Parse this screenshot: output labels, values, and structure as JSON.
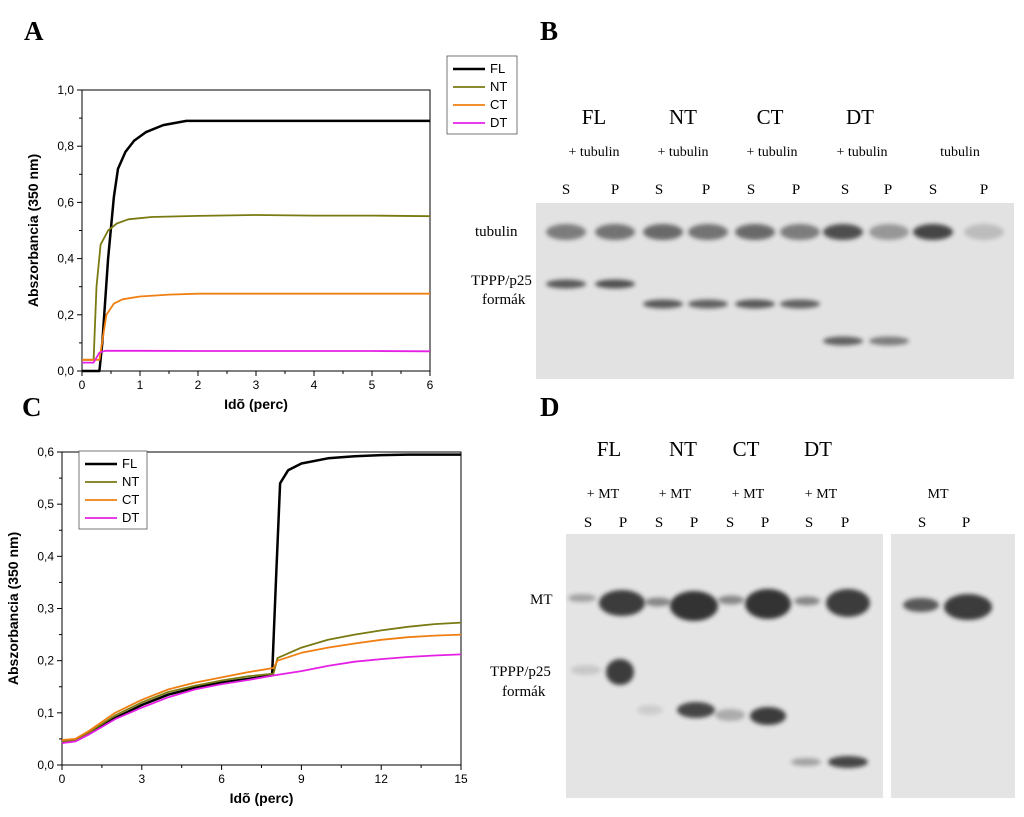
{
  "chart_data": [
    {
      "panel": "A",
      "type": "line",
      "xlabel": "Idõ (perc)",
      "ylabel": "Abszorbancia (350 nm)",
      "xlim": [
        0,
        6
      ],
      "ylim": [
        0,
        1.0
      ],
      "x_ticks": [
        "0",
        "1",
        "2",
        "3",
        "4",
        "5",
        "6"
      ],
      "y_ticks": [
        "0,0",
        "0,2",
        "0,4",
        "0,6",
        "0,8",
        "1,0"
      ],
      "legend_position": "top-right",
      "series": [
        {
          "name": "FL",
          "color": "#000000",
          "x": [
            0,
            0.3,
            0.35,
            0.45,
            0.55,
            0.62,
            0.75,
            0.9,
            1.1,
            1.4,
            1.8,
            2.5,
            3.5,
            4.5,
            6
          ],
          "y": [
            0.0,
            0.0,
            0.1,
            0.4,
            0.62,
            0.72,
            0.78,
            0.82,
            0.85,
            0.875,
            0.89,
            0.89,
            0.89,
            0.89,
            0.89
          ]
        },
        {
          "name": "NT",
          "color": "#7a7a12",
          "x": [
            0,
            0.2,
            0.25,
            0.32,
            0.45,
            0.6,
            0.8,
            1.2,
            2,
            3,
            4,
            5,
            6
          ],
          "y": [
            0.04,
            0.04,
            0.3,
            0.45,
            0.5,
            0.525,
            0.54,
            0.548,
            0.552,
            0.555,
            0.553,
            0.553,
            0.551
          ]
        },
        {
          "name": "CT",
          "color": "#f07f12",
          "x": [
            0,
            0.3,
            0.42,
            0.55,
            0.7,
            1.0,
            1.5,
            2,
            3,
            4,
            5,
            6
          ],
          "y": [
            0.04,
            0.04,
            0.2,
            0.24,
            0.255,
            0.265,
            0.272,
            0.275,
            0.275,
            0.275,
            0.275,
            0.275
          ]
        },
        {
          "name": "DT",
          "color": "#e520e5",
          "x": [
            0,
            0.2,
            0.3,
            0.4,
            1,
            2,
            3,
            4,
            5,
            6
          ],
          "y": [
            0.03,
            0.03,
            0.065,
            0.072,
            0.072,
            0.071,
            0.071,
            0.071,
            0.071,
            0.07
          ]
        }
      ]
    },
    {
      "panel": "C",
      "type": "line",
      "xlabel": "Idõ (perc)",
      "ylabel": "Abszorbancia (350 nm)",
      "xlim": [
        0,
        15
      ],
      "ylim": [
        0,
        0.6
      ],
      "x_ticks": [
        "0",
        "3",
        "6",
        "9",
        "12",
        "15"
      ],
      "y_ticks": [
        "0,0",
        "0,1",
        "0,2",
        "0,3",
        "0,4",
        "0,5",
        "0,6"
      ],
      "legend_position": "top-left",
      "series": [
        {
          "name": "FL",
          "color": "#000000",
          "x": [
            0,
            0.5,
            1,
            2,
            3,
            4,
            5,
            6,
            7,
            7.9,
            8.05,
            8.2,
            8.5,
            9,
            10,
            11,
            12,
            13,
            14,
            15
          ],
          "y": [
            0.045,
            0.048,
            0.06,
            0.09,
            0.115,
            0.135,
            0.148,
            0.158,
            0.165,
            0.172,
            0.36,
            0.54,
            0.565,
            0.578,
            0.588,
            0.592,
            0.594,
            0.595,
            0.595,
            0.595
          ]
        },
        {
          "name": "NT",
          "color": "#7a7a12",
          "x": [
            0,
            0.5,
            1,
            2,
            3,
            4,
            5,
            6,
            7,
            7.95,
            8.1,
            9,
            10,
            11,
            12,
            13,
            14,
            15
          ],
          "y": [
            0.045,
            0.048,
            0.062,
            0.095,
            0.12,
            0.14,
            0.152,
            0.162,
            0.17,
            0.175,
            0.205,
            0.225,
            0.24,
            0.25,
            0.258,
            0.265,
            0.27,
            0.273
          ]
        },
        {
          "name": "CT",
          "color": "#f07f12",
          "x": [
            0,
            0.5,
            1,
            2,
            3,
            4,
            5,
            6,
            7,
            7.95,
            8.1,
            9,
            10,
            11,
            12,
            13,
            14,
            15
          ],
          "y": [
            0.048,
            0.05,
            0.065,
            0.1,
            0.125,
            0.145,
            0.158,
            0.168,
            0.178,
            0.186,
            0.2,
            0.215,
            0.225,
            0.233,
            0.24,
            0.245,
            0.248,
            0.25
          ]
        },
        {
          "name": "DT",
          "color": "#e520e5",
          "x": [
            0,
            0.5,
            1,
            2,
            3,
            4,
            5,
            6,
            7,
            8,
            9,
            10,
            11,
            12,
            13,
            14,
            15
          ],
          "y": [
            0.042,
            0.045,
            0.058,
            0.088,
            0.11,
            0.13,
            0.145,
            0.155,
            0.163,
            0.172,
            0.18,
            0.19,
            0.198,
            0.203,
            0.207,
            0.21,
            0.212
          ]
        }
      ]
    }
  ],
  "panel_b": {
    "letter": "B",
    "groups": [
      {
        "name": "FL",
        "sub": "+ tubulin"
      },
      {
        "name": "NT",
        "sub": "+ tubulin"
      },
      {
        "name": "CT",
        "sub": "+ tubulin"
      },
      {
        "name": "DT",
        "sub": "+ tubulin"
      },
      {
        "name": "",
        "sub": "tubulin"
      }
    ],
    "lanes": [
      "S",
      "P",
      "S",
      "P",
      "S",
      "P",
      "S",
      "P",
      "S",
      "P"
    ],
    "band_labels": [
      "tubulin",
      "TPPP/p25",
      "formák"
    ]
  },
  "panel_d": {
    "letter": "D",
    "groups": [
      {
        "name": "FL",
        "sub": "+ MT"
      },
      {
        "name": "NT",
        "sub": "+ MT"
      },
      {
        "name": "CT",
        "sub": "+ MT"
      },
      {
        "name": "DT",
        "sub": "+ MT"
      },
      {
        "name": "",
        "sub": "MT"
      }
    ],
    "lanes": [
      "S",
      "P",
      "S",
      "P",
      "S",
      "P",
      "S",
      "P",
      "S",
      "P"
    ],
    "band_labels": [
      "MT",
      "TPPP/p25",
      "formák"
    ]
  }
}
